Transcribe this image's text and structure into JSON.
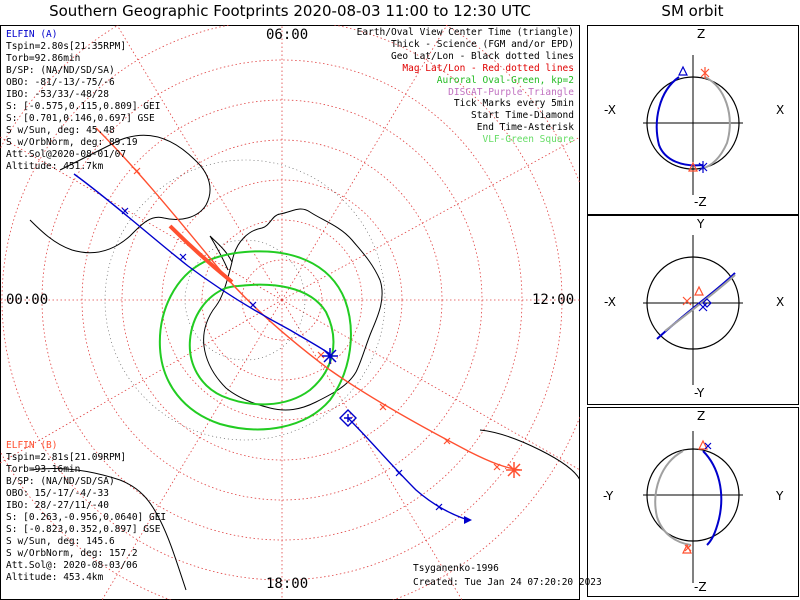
{
  "title": "Southern Geographic Footprints 2020-08-03 11:00 to 12:30 UTC",
  "sm_title": "SM orbit",
  "hours": {
    "top": "06:00",
    "left": "00:00",
    "right": "12:00",
    "bottom": "18:00"
  },
  "legend": [
    {
      "text": "Earth/Oval View Center Time (triangle)",
      "color": "#000000"
    },
    {
      "text": "Thick - Science (FGM and/or EPD)",
      "color": "#000000"
    },
    {
      "text": "Geo Lat/Lon - Black dotted lines",
      "color": "#000000"
    },
    {
      "text": "Mag Lat/Lon - Red dotted lines",
      "color": "#e00000"
    },
    {
      "text": "Auroral Oval-Green, kp=2",
      "color": "#22bb22"
    },
    {
      "text": "DISCAT-Purple Triangle",
      "color": "#c070c0"
    },
    {
      "text": "Tick Marks every 5min",
      "color": "#000000"
    },
    {
      "text": "Start Time-Diamond",
      "color": "#000000"
    },
    {
      "text": "End Time-Asterisk",
      "color": "#000000"
    },
    {
      "text": "VLF-Green Square",
      "color": "#66dd66"
    }
  ],
  "elfin_a": {
    "label": "ELFIN (A)",
    "color": "#0000cc",
    "lines": [
      "Tspin=2.80s[21.35RPM]",
      "Torb=92.86min",
      "B/SP: (NA/ND/SD/SA)",
      "OBO: -81/-13/-75/-6",
      "IBO: -53/33/-48/28",
      "S: [-0.575,0.115,0.809] GEI",
      "S: [0.701,0.146,0.697] GSE",
      "S w/Sun, deg: 45.48",
      "S w/OrbNorm, deg: 89.19",
      "Att.Sol@2020-08-01/07",
      "Altitude: 451.7km"
    ]
  },
  "elfin_b": {
    "label": "ELFIN (B)",
    "color": "#ff5030",
    "lines": [
      "Tspin=2.81s[21.09RPM]",
      "Torb=93.16min",
      "B/SP: (NA/ND/SD/SA)",
      "OBO: 15/-17/-4/-33",
      "IBO: 28/-27/11/-40",
      "S: [0.263,-0.956,0.0640] GEI",
      "S: [-0.823,0.352,0.897] GSE",
      "S w/Sun, deg: 145.6",
      "S w/OrbNorm, deg: 157.2",
      "Att.Sol@: 2020-08-03/06",
      "Altitude: 453.4km"
    ]
  },
  "credit": {
    "model": "Tsyganenko-1996",
    "created": "Created: Tue Jan 24 07:20:20 2023"
  },
  "sm_panels": [
    {
      "name": "xz-panel",
      "top": "Z",
      "bottom": "-Z",
      "left": "-X",
      "right": "X"
    },
    {
      "name": "xy-panel",
      "top": "Y",
      "bottom": "-Y",
      "left": "-X",
      "right": "X"
    },
    {
      "name": "yz-panel",
      "top": "Z",
      "bottom": "-Z",
      "left": "-Y",
      "right": "Y"
    }
  ],
  "colors": {
    "probe_a": "#0000cc",
    "probe_b": "#ff5030",
    "oval": "#22cc22",
    "mag_grid": "#e04040"
  }
}
